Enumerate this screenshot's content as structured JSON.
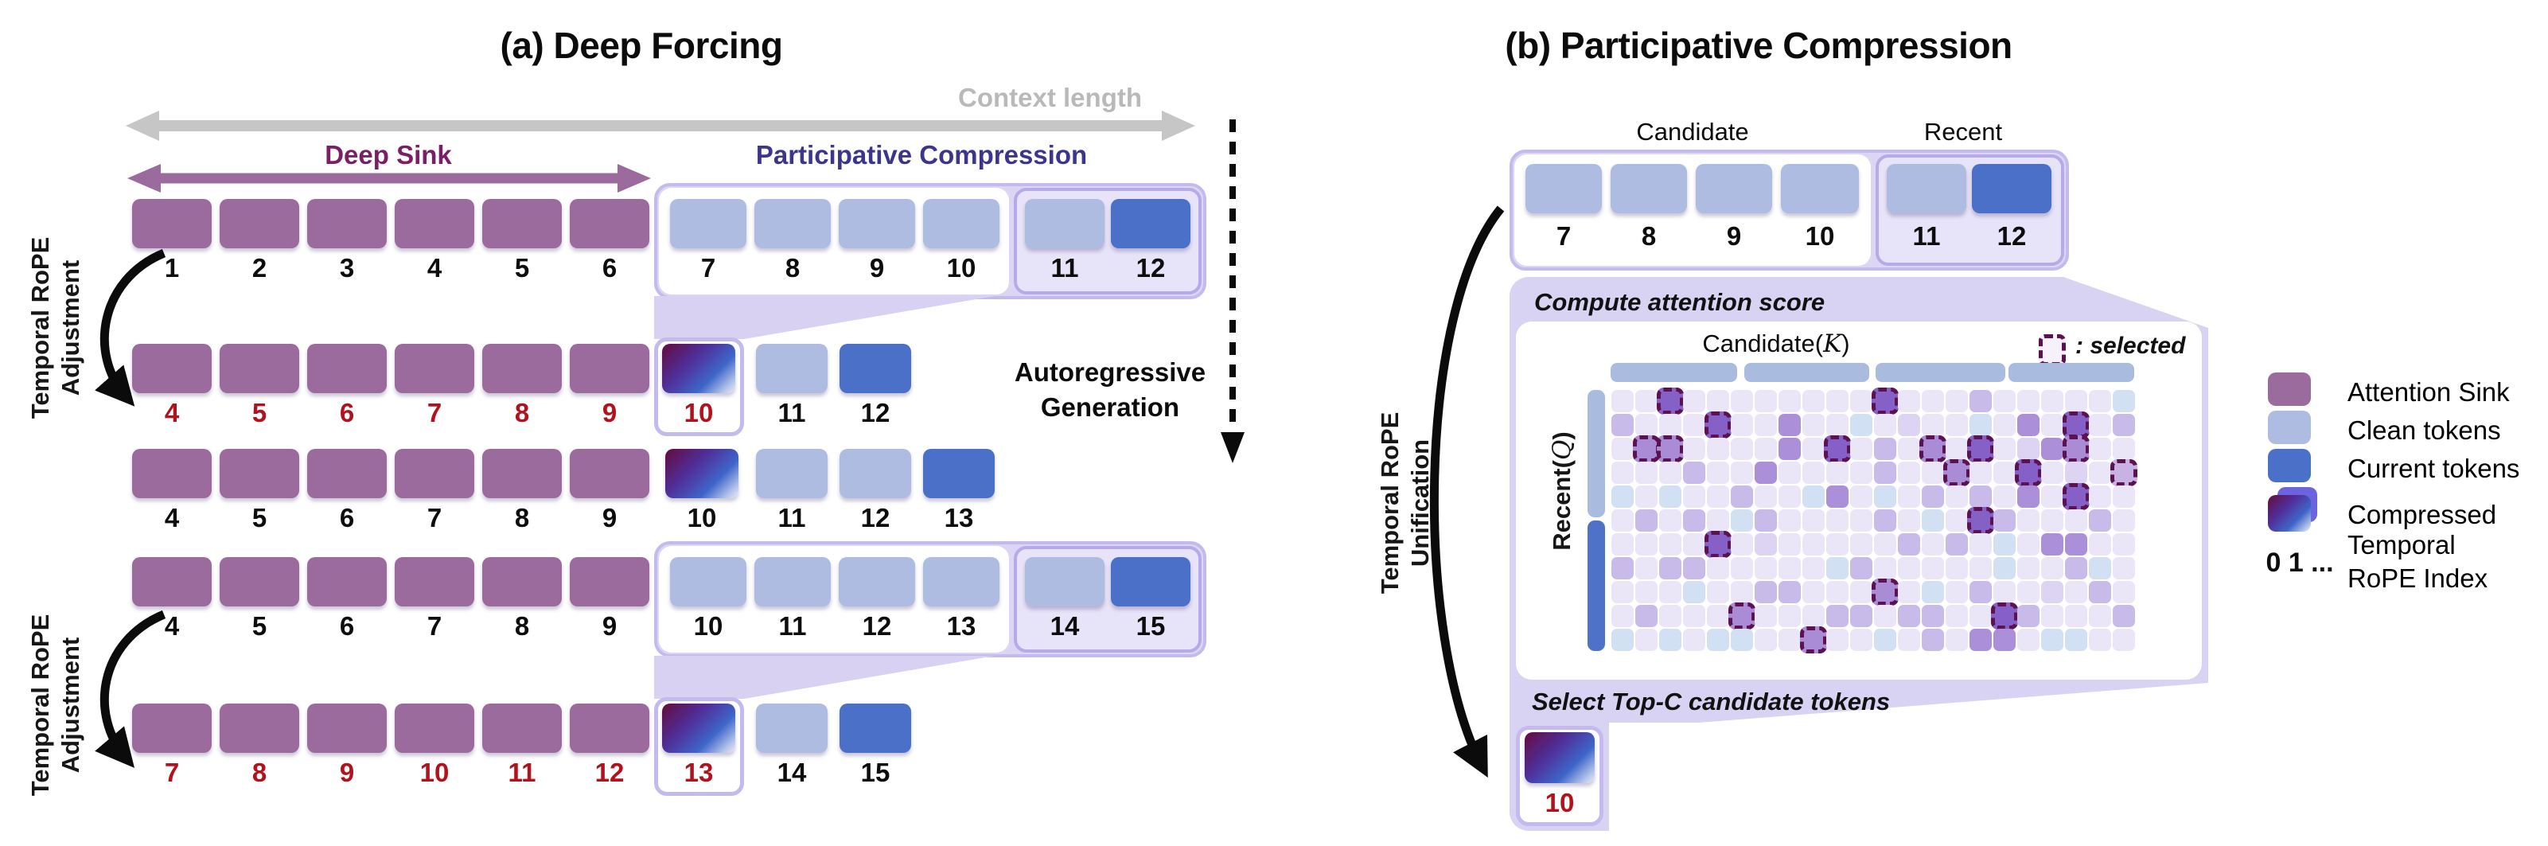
{
  "panel_a": {
    "title": "(a) Deep Forcing",
    "context_length": "Context length",
    "deep_sink": "Deep Sink",
    "participative": "Participative Compression",
    "autoregressive": [
      "Autoregressive",
      "Generation"
    ],
    "rope_adjustment": [
      "Temporal RoPE",
      "Adjustment"
    ],
    "rows": [
      {
        "sink": [
          "1",
          "2",
          "3",
          "4",
          "5",
          "6"
        ],
        "sink_red": false,
        "group": {
          "white": [
            [
              "7",
              "clean"
            ],
            [
              "8",
              "clean"
            ],
            [
              "9",
              "clean"
            ],
            [
              "10",
              "clean"
            ]
          ],
          "lav": [
            [
              "11",
              "clean"
            ],
            [
              "12",
              "current"
            ]
          ]
        }
      },
      {
        "sink": [
          "4",
          "5",
          "6",
          "7",
          "8",
          "9"
        ],
        "sink_red": true,
        "boxed": [
          "10",
          "compressed"
        ],
        "tokens": [
          [
            "11",
            "clean"
          ],
          [
            "12",
            "current"
          ]
        ]
      },
      {
        "sink": [
          "4",
          "5",
          "6",
          "7",
          "8",
          "9"
        ],
        "sink_red": false,
        "tokens": [
          [
            "10",
            "compressed"
          ],
          [
            "11",
            "clean"
          ],
          [
            "12",
            "clean"
          ],
          [
            "13",
            "current"
          ]
        ]
      },
      {
        "sink": [
          "4",
          "5",
          "6",
          "7",
          "8",
          "9"
        ],
        "sink_red": false,
        "group": {
          "white": [
            [
              "10",
              "clean"
            ],
            [
              "11",
              "clean"
            ],
            [
              "12",
              "clean"
            ],
            [
              "13",
              "clean"
            ]
          ],
          "lav": [
            [
              "14",
              "clean"
            ],
            [
              "15",
              "current"
            ]
          ]
        }
      },
      {
        "sink": [
          "7",
          "8",
          "9",
          "10",
          "11",
          "12"
        ],
        "sink_red": true,
        "boxed": [
          "13",
          "compressed"
        ],
        "tokens": [
          [
            "14",
            "clean"
          ],
          [
            "15",
            "current"
          ]
        ]
      }
    ]
  },
  "panel_b": {
    "title": "(b) Participative Compression",
    "candidate": "Candidate",
    "recent": "Recent",
    "compute": "Compute attention score",
    "select_top_c": "Select Top-C candidate tokens",
    "rope_unification": [
      "Temporal RoPE",
      "Unification"
    ],
    "tokens": {
      "white": [
        [
          "7",
          "clean"
        ],
        [
          "8",
          "clean"
        ],
        [
          "9",
          "clean"
        ],
        [
          "10",
          "clean"
        ]
      ],
      "lav": [
        [
          "11",
          "clean"
        ],
        [
          "12",
          "current"
        ]
      ]
    },
    "compressed_token": "10",
    "matrix": {
      "x_label_prefix": "Candidate(",
      "x_label_var": "K",
      "x_label_suffix": ")",
      "y_label_prefix": "Recent(",
      "y_label_var": "Q",
      "y_label_suffix": ")",
      "selected_label": ": selected",
      "cols": 22,
      "rows": 11,
      "header_groups": 4,
      "side_light_rows": 5,
      "grid": [
        "..T........T...m.....b",
        "m...T..p..b.l..b.p.T.m",
        ".ss....p.T.m.s.T.lps..",
        "...m..p....m..s..T.l.w",
        "b.b..m..bp.b.m.m.p.T..",
        ".m.m.bm....m.b.Tm...m.",
        "....T.l.....m.m.b.pp..",
        "m.mm.....bm.....b..mb.",
        "...b..mm...s.b.m..l.m.",
        ".m...s...mm.mm..Tm...m",
        "b.b.bb..s..b.m.pp.bb.."
      ]
    }
  },
  "legend": {
    "items": [
      {
        "key": "sink",
        "label": "Attention Sink"
      },
      {
        "key": "clean",
        "label": "Clean tokens"
      },
      {
        "key": "current",
        "label": "Current tokens"
      },
      {
        "key": "compressed",
        "label": "Compressed"
      },
      {
        "key": "rope_index",
        "prefix": "0 1 ...",
        "label_lines": [
          "Temporal",
          "RoPE Index"
        ]
      }
    ]
  },
  "colors": {
    "sink": "#9c6b9d",
    "clean": "#aebce2",
    "current": "#4a70c8",
    "red": "#b1121c",
    "label": "#0d0d0d",
    "deep_sink_text": "#7a1e66",
    "participative_text": "#3b3590",
    "gray_arrow": "#c6c6c6",
    "gray_text": "#b9b9b9",
    "container": "#dcd6f4",
    "container_border": "#c4baee",
    "subbox_border": "#b6abe8",
    "header_bar": "#a9bce0",
    "side_light": "#a9bce0",
    "side_dark": "#4d72c8",
    "cell_border": "#5c1150",
    "cell_fills": {
      ".": "#eae6f8",
      "l": "#dcd4f2",
      "m": "#c8bbe9",
      "p": "#ab8fd9",
      "b": "#d2e0f4",
      "T": "#8560c7",
      "s": "#aa8bd5",
      "w": "#c9b2e3"
    },
    "legend_back_square": "#6c63de"
  }
}
